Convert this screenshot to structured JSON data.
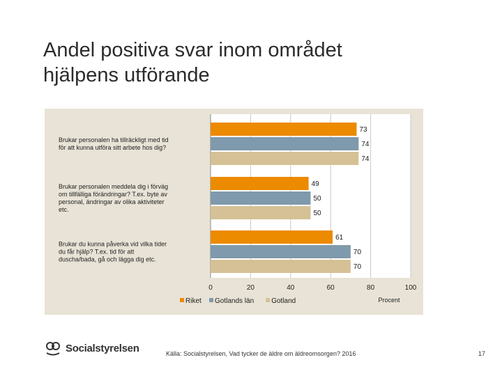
{
  "slide": {
    "title_line1": "Andel positiva svar inom området",
    "title_line2": "hjälpens utförande",
    "source": "Källa: Socialstyrelsen, Vad tycker de äldre om äldreomsorgen? 2016",
    "page_number": "17",
    "logo_text": "Socialstyrelsen"
  },
  "chart_data": {
    "type": "bar",
    "orientation": "horizontal",
    "title": "",
    "xlabel": "Procent",
    "xlim": [
      0,
      100
    ],
    "xticks": [
      "0",
      "20",
      "40",
      "60",
      "80",
      "100"
    ],
    "categories": [
      [
        "Brukar personalen ha tillräckligt med tid",
        "för att kunna utföra sitt arbete hos dig?"
      ],
      [
        "Brukar personalen meddela dig i förväg",
        "om tillfälliga förändringar? T.ex. byte av",
        "personal, ändringar av olika aktiviteter",
        "etc."
      ],
      [
        "Brukar du kunna påverka vid vilka tider",
        "du får hjälp? T.ex. tid för att",
        "duscha/bada, gå och lägga dig etc."
      ]
    ],
    "series": [
      {
        "name": "Riket",
        "color": "#ec8a00",
        "values": [
          73,
          49,
          61
        ]
      },
      {
        "name": "Gotlands län",
        "color": "#7f9aac",
        "values": [
          74,
          50,
          70
        ]
      },
      {
        "name": "Gotland",
        "color": "#d5c195",
        "values": [
          74,
          50,
          70
        ]
      }
    ],
    "legend_position": "bottom-left"
  }
}
